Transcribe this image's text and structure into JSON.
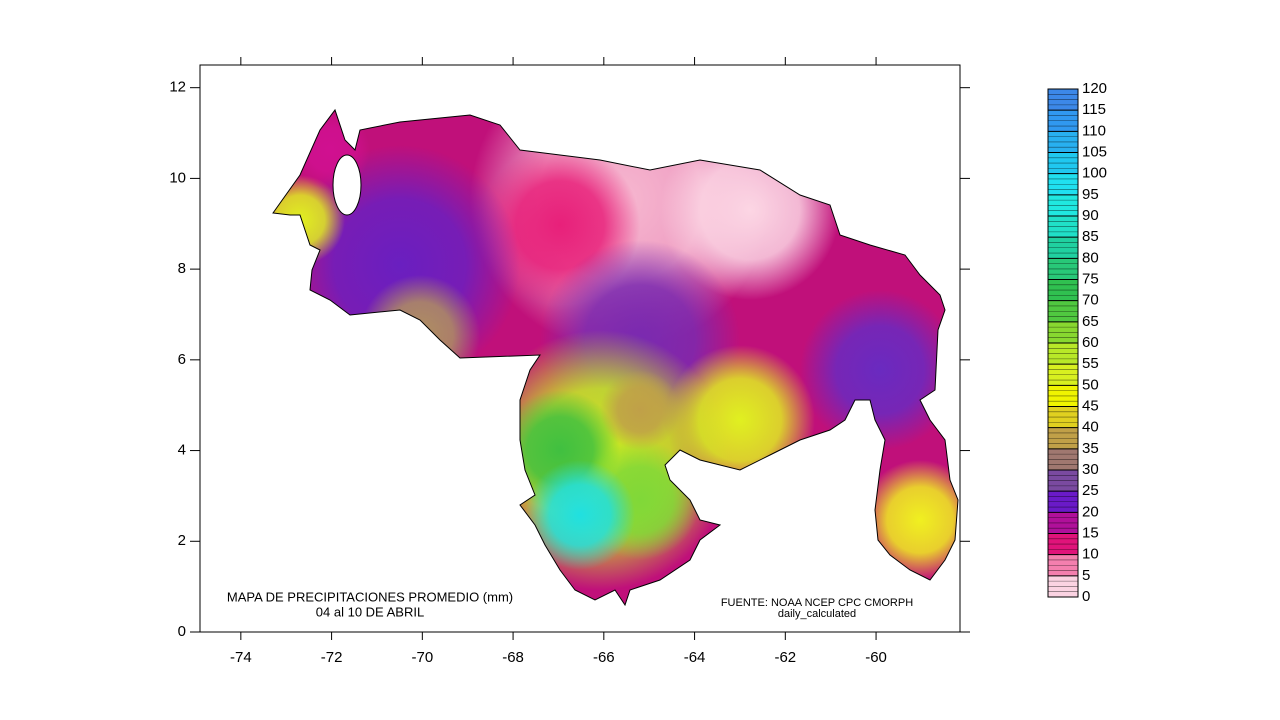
{
  "map": {
    "type": "contour",
    "title": "MAPA DE PRECIPITACIONES PROMEDIO (mm)",
    "subtitle": "04 al 10 DE ABRIL",
    "source": "FUENTE: NOAA NCEP CPC CMORPH",
    "source_note": "daily_calculated",
    "xlim": [
      -74.9,
      -58.15
    ],
    "xticks": [
      -74,
      -72,
      -70,
      -68,
      -66,
      -64,
      -62,
      -60
    ],
    "ylim": [
      0,
      12.5
    ],
    "yticks": [
      0,
      2,
      4,
      6,
      8,
      10,
      12
    ],
    "colorbar": {
      "ticks": [
        0,
        5,
        10,
        15,
        20,
        25,
        30,
        35,
        40,
        45,
        50,
        55,
        60,
        65,
        70,
        75,
        80,
        85,
        90,
        95,
        100,
        105,
        110,
        115,
        120
      ],
      "colors": [
        "#fbd3e2",
        "#f47fae",
        "#e0137a",
        "#b0109a",
        "#6a1ac8",
        "#7a4aa0",
        "#a07870",
        "#c0a048",
        "#e0d020",
        "#f0f400",
        "#d8f020",
        "#b8e828",
        "#88d830",
        "#50c840",
        "#30c050",
        "#28c878",
        "#20d0a0",
        "#20e0c8",
        "#20e8e0",
        "#20e0f0",
        "#20c8f0",
        "#28b0f0",
        "#3098f0",
        "#3c88e8"
      ]
    }
  }
}
